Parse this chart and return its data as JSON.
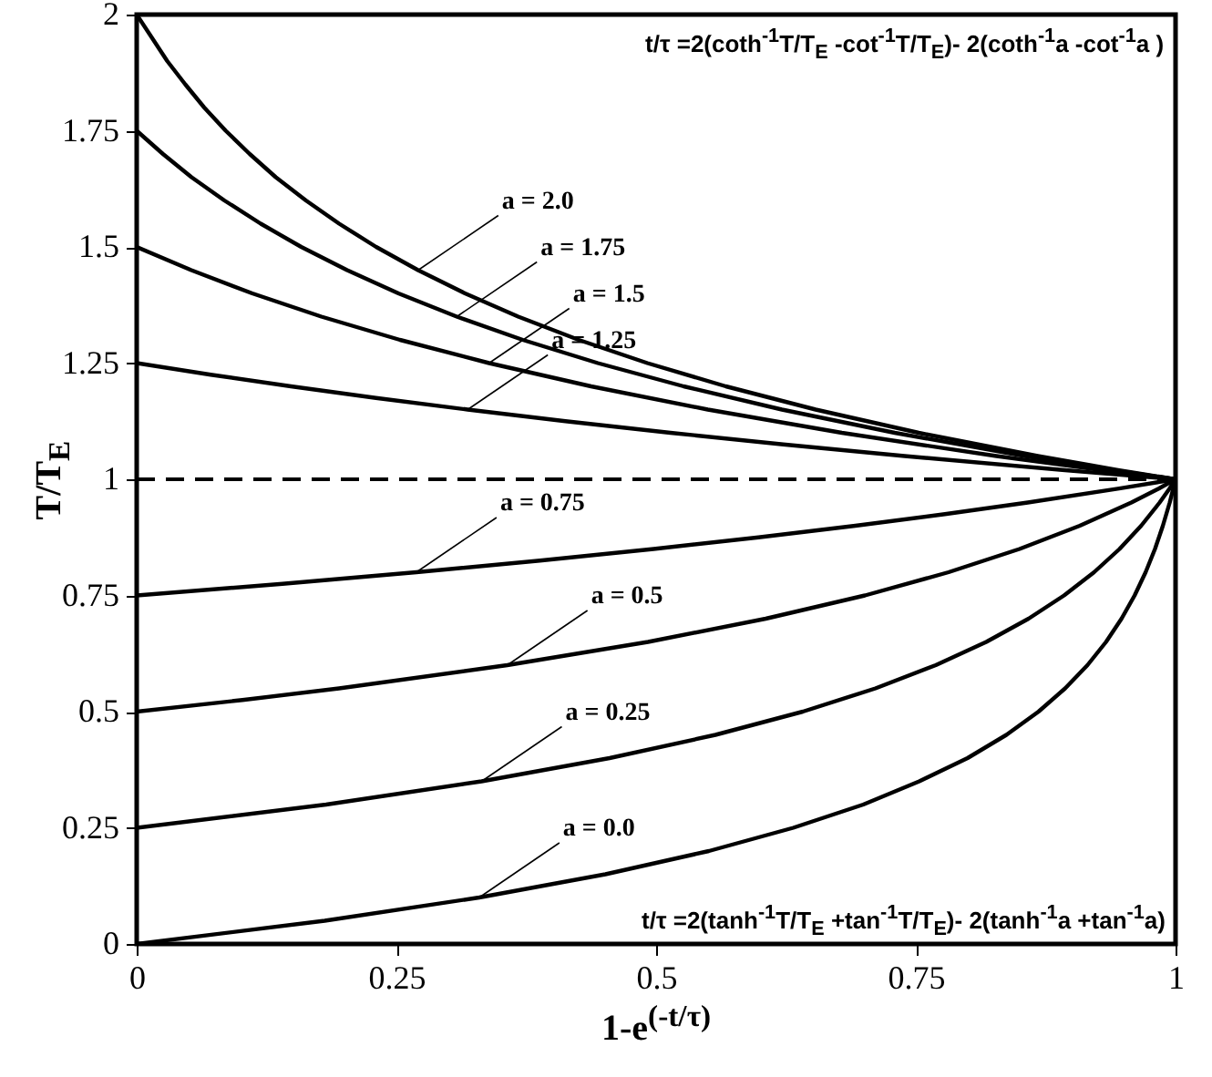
{
  "chart_data": {
    "type": "line",
    "xlabel": "1-e$^{(-t/τ)}$",
    "ylabel": "T/T$_{E}$",
    "xlim": [
      0,
      1
    ],
    "ylim": [
      0,
      2
    ],
    "xticks": [
      0,
      0.25,
      0.5,
      0.75,
      1
    ],
    "yticks": [
      0,
      0.25,
      0.5,
      0.75,
      1,
      1.25,
      1.5,
      1.75,
      2
    ],
    "grid": false,
    "legend": false,
    "marker": "none",
    "line_style": "solid",
    "series": [
      {
        "color": "#000000",
        "x": [
          0,
          0.0294,
          0.0467,
          0.065,
          0.0857,
          0.1088,
          0.1339,
          0.1629,
          0.1949,
          0.2305,
          0.2709,
          0.3161,
          0.3673,
          0.4255,
          0.4916,
          0.5671,
          0.6536,
          0.7528,
          0.8674,
          0.9446,
          0.9719,
          1
        ],
        "values": [
          2,
          1.9,
          1.85,
          1.8,
          1.75,
          1.7,
          1.65,
          1.6,
          1.55,
          1.5,
          1.45,
          1.4,
          1.35,
          1.3,
          1.25,
          1.2,
          1.15,
          1.1,
          1.05,
          1.02,
          1.01,
          1
        ]
      },
      {
        "color": "#000000",
        "x": [
          0,
          0.0253,
          0.0528,
          0.0844,
          0.1194,
          0.1584,
          0.2026,
          0.252,
          0.3081,
          0.3716,
          0.4439,
          0.5265,
          0.6211,
          0.7297,
          0.8549,
          0.9394,
          0.9692,
          1
        ],
        "values": [
          1.75,
          1.7,
          1.65,
          1.6,
          1.55,
          1.5,
          1.45,
          1.4,
          1.35,
          1.3,
          1.25,
          1.2,
          1.15,
          1.1,
          1.05,
          1.02,
          1.01,
          1
        ]
      },
      {
        "color": "#000000",
        "x": [
          0,
          0.0526,
          0.1113,
          0.1778,
          0.2534,
          0.3392,
          0.4374,
          0.5498,
          0.6788,
          0.8276,
          0.928,
          0.9634,
          1
        ],
        "values": [
          1.5,
          1.45,
          1.4,
          1.35,
          1.3,
          1.25,
          1.2,
          1.15,
          1.1,
          1.05,
          1.02,
          1.01,
          1
        ]
      },
      {
        "color": "#000000",
        "x": [
          0,
          0.0713,
          0.1485,
          0.2303,
          0.3186,
          0.4127,
          0.5138,
          0.6224,
          0.7392,
          0.891,
          0.9447,
          1
        ],
        "values": [
          1.25,
          1.225,
          1.2,
          1.175,
          1.15,
          1.125,
          1.1,
          1.075,
          1.05,
          1.02,
          1.01,
          1
        ]
      },
      {
        "color": "#000000",
        "x": [
          0,
          0.1403,
          0.2692,
          0.3881,
          0.4976,
          0.5985,
          0.6918,
          0.778,
          0.8578,
          0.9457,
          1
        ],
        "values": [
          0.75,
          0.775,
          0.8,
          0.825,
          0.85,
          0.875,
          0.9,
          0.925,
          0.95,
          0.98,
          1
        ]
      },
      {
        "color": "#000000",
        "x": [
          0,
          0.1018,
          0.1948,
          0.3567,
          0.4922,
          0.6055,
          0.701,
          0.7815,
          0.8498,
          0.9078,
          0.9575,
          0.9838,
          1
        ],
        "values": [
          0.5,
          0.525,
          0.55,
          0.6,
          0.65,
          0.7,
          0.75,
          0.8,
          0.85,
          0.9,
          0.95,
          0.98,
          1
        ]
      },
      {
        "color": "#000000",
        "x": [
          0,
          0.1823,
          0.332,
          0.4552,
          0.5571,
          0.6412,
          0.7111,
          0.7692,
          0.8178,
          0.8585,
          0.8927,
          0.9216,
          0.9461,
          0.9669,
          0.9847,
          0.9942,
          1
        ],
        "values": [
          0.25,
          0.3,
          0.35,
          0.4,
          0.45,
          0.5,
          0.55,
          0.6,
          0.65,
          0.7,
          0.75,
          0.8,
          0.85,
          0.9,
          0.95,
          0.98,
          1
        ]
      },
      {
        "color": "#000000",
        "x": [
          0,
          0.181,
          0.3297,
          0.4512,
          0.5508,
          0.632,
          0.6994,
          0.7533,
          0.7998,
          0.8372,
          0.8681,
          0.8937,
          0.9152,
          0.9331,
          0.948,
          0.9606,
          0.9712,
          0.9802,
          0.9878,
          0.9944,
          1
        ],
        "values": [
          0,
          0.05,
          0.1,
          0.15,
          0.2,
          0.25,
          0.3,
          0.35,
          0.4,
          0.45,
          0.5,
          0.55,
          0.6,
          0.65,
          0.7,
          0.75,
          0.8,
          0.85,
          0.9,
          0.95,
          1
        ]
      }
    ],
    "ref_lines": [
      {
        "axis": "y",
        "value": 1,
        "color": "#000000",
        "line_style": "dashed"
      }
    ],
    "annotations": [
      "t/τ =2(coth$^{-1}$T/T$_{E}$ -cot$^{-1}$T/T$_{E}$)- 2(coth$^{-1}$a -cot$^{-1}$a )",
      "t/τ =2(tanh$^{-1}$T/T$_{E}$ +tan$^{-1}$T/T$_{E}$)- 2(tanh$^{-1}$a +tan$^{-1}$a)",
      {
        "text": "a = 2.0",
        "x": 0.2709,
        "y": 1.45
      },
      {
        "text": "a = 1.75",
        "x": 0.3081,
        "y": 1.35
      },
      {
        "text": "a = 1.5",
        "x": 0.3392,
        "y": 1.25
      },
      {
        "text": "a = 1.25",
        "x": 0.3186,
        "y": 1.15
      },
      {
        "text": "a = 0.75",
        "x": 0.2692,
        "y": 0.8
      },
      {
        "text": "a = 0.5",
        "x": 0.3567,
        "y": 0.6
      },
      {
        "text": "a = 0.25",
        "x": 0.332,
        "y": 0.35
      },
      {
        "text": "a = 0.0",
        "x": 0.3297,
        "y": 0.1
      }
    ]
  }
}
